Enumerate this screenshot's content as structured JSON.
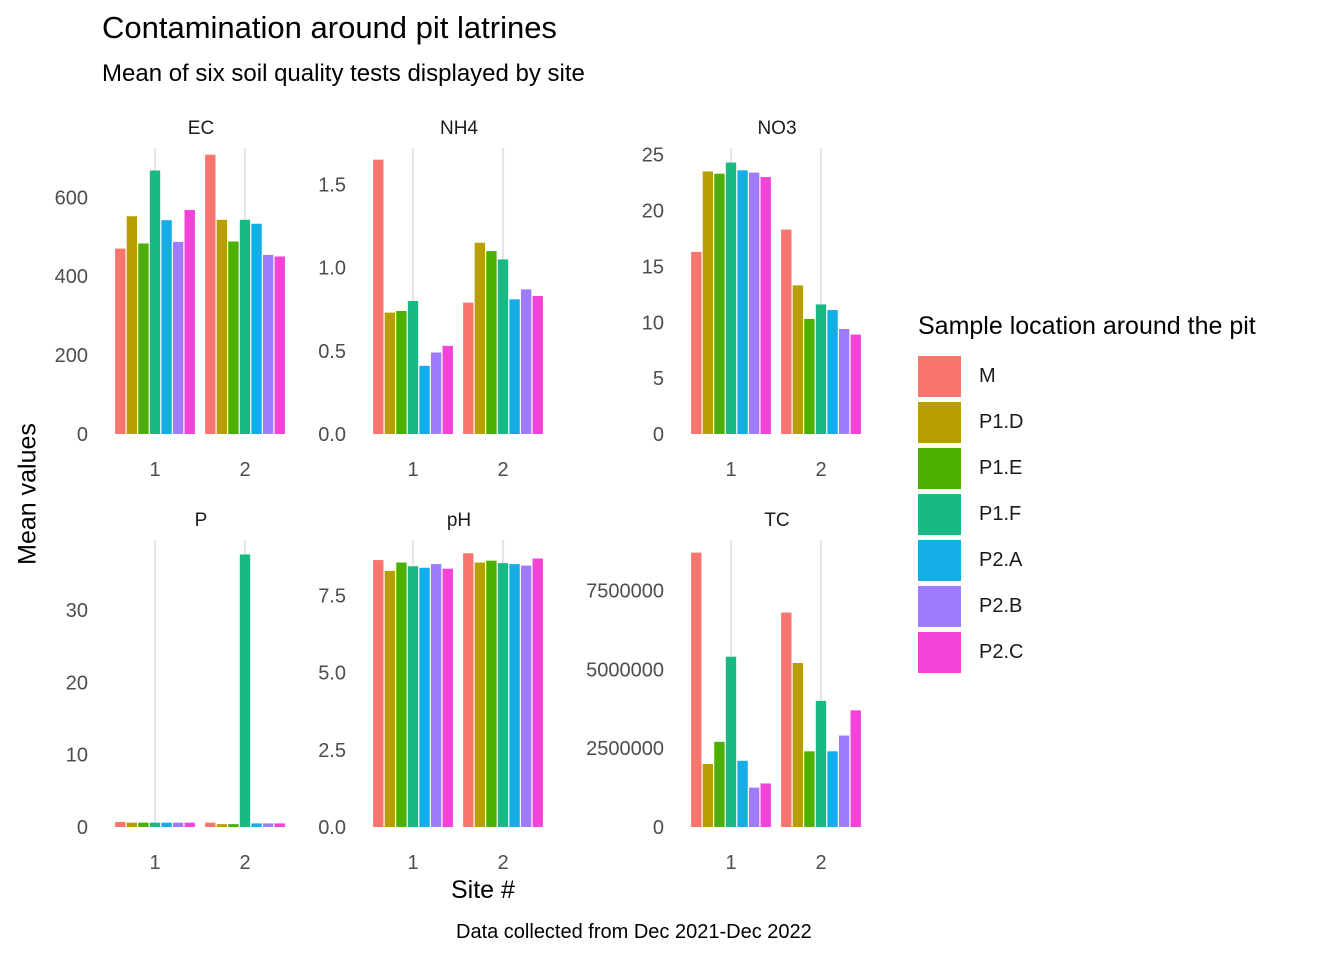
{
  "title": "Contamination around pit latrines",
  "subtitle": "Mean of six soil quality tests displayed by site",
  "caption": "Data collected from Dec 2021-Dec 2022",
  "chart_data": {
    "type": "bar",
    "facet": true,
    "xlabel": "Site #",
    "ylabel": "Mean values",
    "legend_title": "Sample location around the pit",
    "legend_position": "right",
    "grid": true,
    "categories": [
      "1",
      "2"
    ],
    "series_names": [
      "M",
      "P1.D",
      "P1.E",
      "P1.F",
      "P2.A",
      "P2.B",
      "P2.C"
    ],
    "colors": [
      "#F8766D",
      "#B79F00",
      "#4DAF00",
      "#19B985",
      "#14ADE6",
      "#9F7BFF",
      "#F443D9"
    ],
    "panels": [
      {
        "name": "EC",
        "ylim": [
          0,
          725
        ],
        "yticks": [
          0,
          200,
          400,
          600
        ],
        "values": {
          "M": [
            470,
            708
          ],
          "P1.D": [
            552,
            543
          ],
          "P1.E": [
            483,
            488
          ],
          "P1.F": [
            668,
            543
          ],
          "P2.A": [
            542,
            533
          ],
          "P2.B": [
            487,
            454
          ],
          "P2.C": [
            568,
            450
          ]
        }
      },
      {
        "name": "NH4",
        "ylim": [
          0,
          1.72
        ],
        "yticks": [
          0.0,
          0.5,
          1.0,
          1.5
        ],
        "ytick_labels": [
          "0.0",
          "0.5",
          "1.0",
          "1.5"
        ],
        "values": {
          "M": [
            1.65,
            0.79
          ],
          "P1.D": [
            0.73,
            1.15
          ],
          "P1.E": [
            0.74,
            1.1
          ],
          "P1.F": [
            0.8,
            1.05
          ],
          "P2.A": [
            0.41,
            0.81
          ],
          "P2.B": [
            0.49,
            0.87
          ],
          "P2.C": [
            0.53,
            0.83
          ]
        }
      },
      {
        "name": "NO3",
        "ylim": [
          0,
          25.6
        ],
        "yticks": [
          0,
          5,
          10,
          15,
          20,
          25
        ],
        "values": {
          "M": [
            16.3,
            18.3
          ],
          "P1.D": [
            23.5,
            13.3
          ],
          "P1.E": [
            23.3,
            10.3
          ],
          "P1.F": [
            24.3,
            11.6
          ],
          "P2.A": [
            23.6,
            11.1
          ],
          "P2.B": [
            23.4,
            9.4
          ],
          "P2.C": [
            23.0,
            8.9
          ]
        }
      },
      {
        "name": "P",
        "ylim": [
          0,
          39.7
        ],
        "yticks": [
          0,
          10,
          20,
          30
        ],
        "values": {
          "M": [
            0.7,
            0.6
          ],
          "P1.D": [
            0.6,
            0.4
          ],
          "P1.E": [
            0.6,
            0.4
          ],
          "P1.F": [
            0.6,
            37.7
          ],
          "P2.A": [
            0.6,
            0.5
          ],
          "P2.B": [
            0.6,
            0.5
          ],
          "P2.C": [
            0.6,
            0.5
          ]
        }
      },
      {
        "name": "pH",
        "ylim": [
          0,
          9.3
        ],
        "yticks": [
          0.0,
          2.5,
          5.0,
          7.5
        ],
        "ytick_labels": [
          "0.0",
          "2.5",
          "5.0",
          "7.5"
        ],
        "values": {
          "M": [
            8.65,
            8.87
          ],
          "P1.D": [
            8.3,
            8.57
          ],
          "P1.E": [
            8.57,
            8.63
          ],
          "P1.F": [
            8.45,
            8.55
          ],
          "P2.A": [
            8.4,
            8.52
          ],
          "P2.B": [
            8.52,
            8.47
          ],
          "P2.C": [
            8.37,
            8.7
          ]
        }
      },
      {
        "name": "TC",
        "ylim": [
          0,
          9100000
        ],
        "yticks": [
          0,
          2500000,
          5000000,
          7500000
        ],
        "ytick_labels": [
          "0",
          "2500000",
          "5000000",
          "7500000"
        ],
        "values": {
          "M": [
            8700000,
            6800000
          ],
          "P1.D": [
            2000000,
            5200000
          ],
          "P1.E": [
            2700000,
            2400000
          ],
          "P1.F": [
            5400000,
            4000000
          ],
          "P2.A": [
            2100000,
            2400000
          ],
          "P2.B": [
            1250000,
            2900000
          ],
          "P2.C": [
            1380000,
            3700000
          ]
        }
      }
    ]
  }
}
